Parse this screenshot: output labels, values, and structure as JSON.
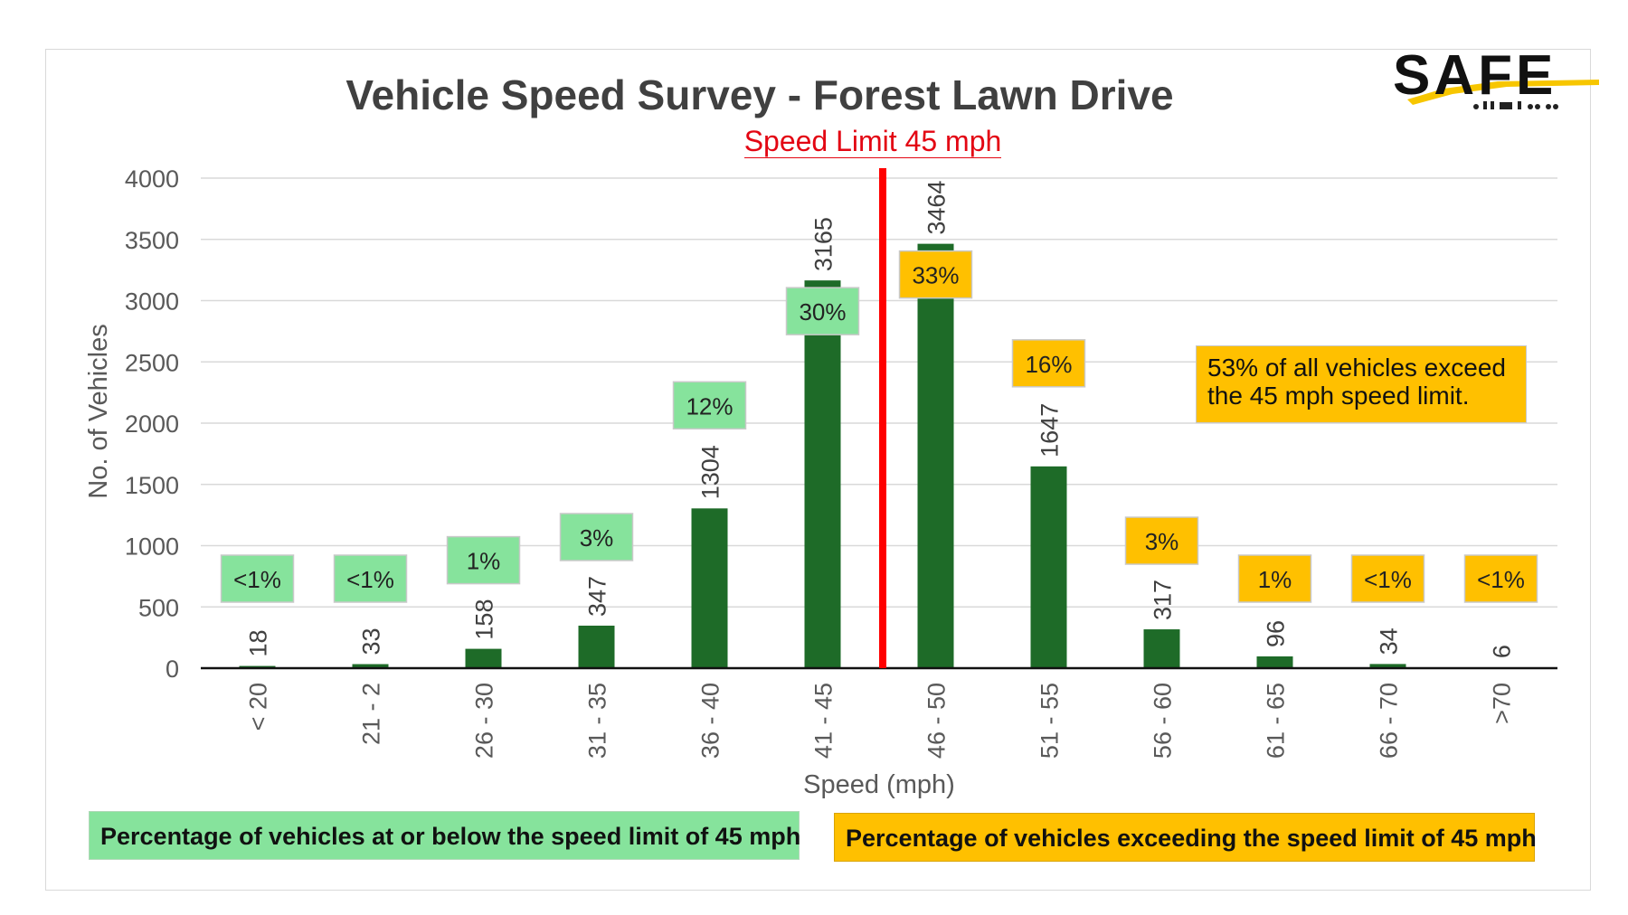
{
  "logo_text": "SAFE",
  "note": {
    "line1": "53% of all vehicles exceed",
    "line2": "the 45 mph speed limit."
  },
  "legend": {
    "below": "Percentage of vehicles at or below the speed limit of 45 mph",
    "above": "Percentage of vehicles exceeding the speed limit of 45 mph"
  },
  "colors": {
    "bar": "#1e6b28",
    "limit_line": "#ff0000",
    "below_limit": "#86e39c",
    "above_limit": "#ffc000"
  },
  "chart_data": {
    "type": "bar",
    "title": "Vehicle Speed Survey - Forest Lawn Drive",
    "subtitle": "Speed Limit 45 mph",
    "xlabel": "Speed (mph)",
    "ylabel": "No. of Vehicles",
    "ylim": [
      0,
      4000
    ],
    "yticks": [
      0,
      500,
      1000,
      1500,
      2000,
      2500,
      3000,
      3500,
      4000
    ],
    "grid": true,
    "categories": [
      "< 20",
      "21 - 2",
      "26 - 30",
      "31 - 35",
      "36 - 40",
      "41 - 45",
      "46 - 50",
      "51 - 55",
      "56 - 60",
      "61 - 65",
      "66 - 70",
      ">70"
    ],
    "values": [
      18,
      33,
      158,
      347,
      1304,
      3165,
      3464,
      1647,
      317,
      96,
      34,
      6
    ],
    "percent_labels": [
      "<1%",
      "<1%",
      "1%",
      "3%",
      "12%",
      "30%",
      "33%",
      "16%",
      "3%",
      "1%",
      "<1%",
      "<1%"
    ],
    "speed_limit_after_category": "41 - 45",
    "groups": [
      "below",
      "below",
      "below",
      "below",
      "below",
      "below",
      "above",
      "above",
      "above",
      "above",
      "above",
      "above"
    ]
  }
}
